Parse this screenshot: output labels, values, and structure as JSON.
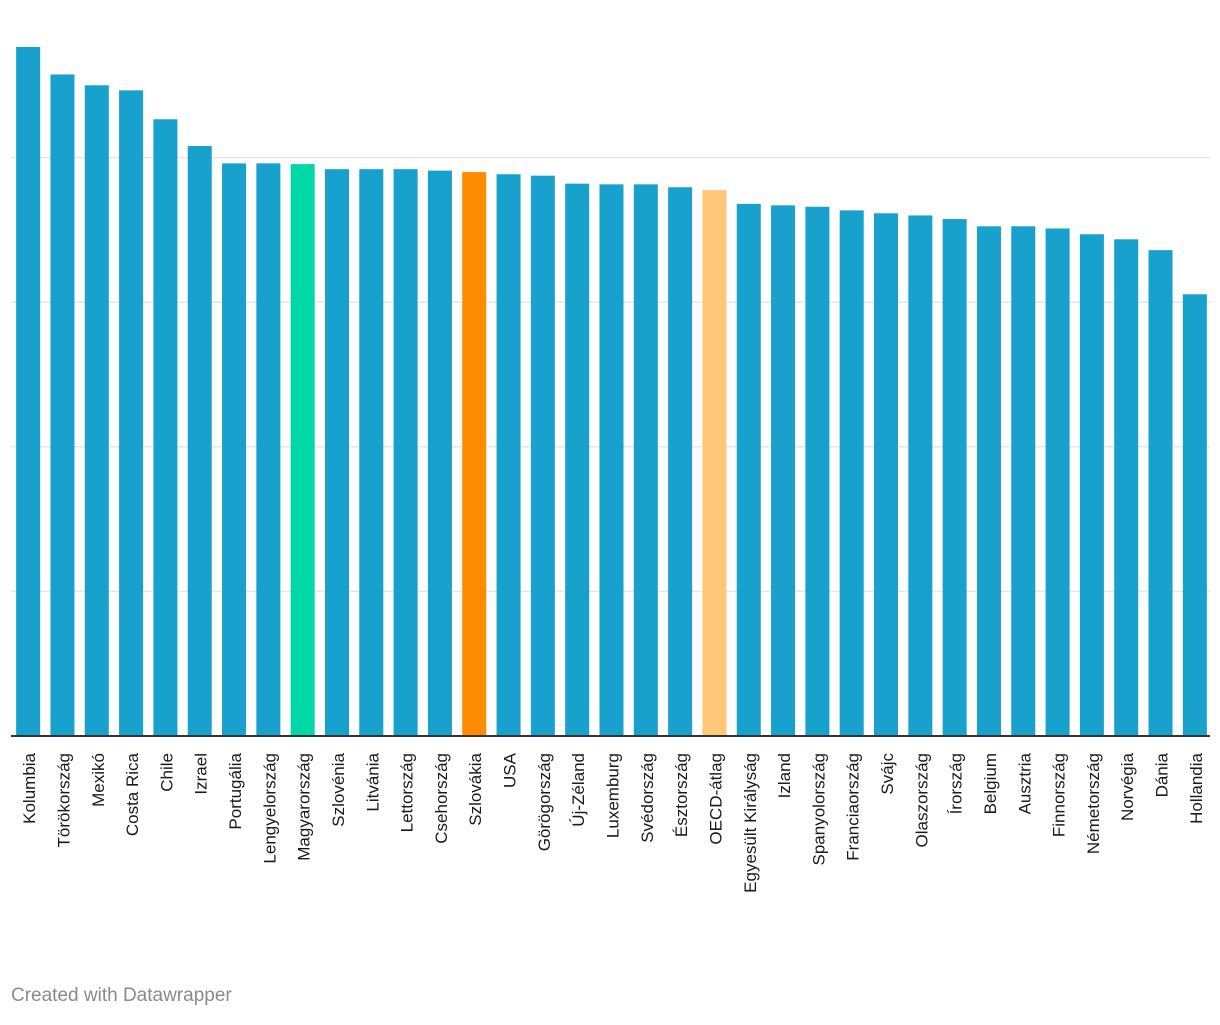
{
  "chart_data": {
    "type": "bar",
    "title": "",
    "xlabel": "",
    "ylabel": "",
    "ylim": [
      0,
      100
    ],
    "gridlines": [
      20,
      40,
      60,
      80
    ],
    "categories": [
      "Kolumbia",
      "Törökország",
      "Mexikó",
      "Costa Rica",
      "Chile",
      "Izrael",
      "Portugália",
      "Lengyelország",
      "Magyarország",
      "Szlovénia",
      "Litvánia",
      "Lettország",
      "Csehország",
      "Szlovákia",
      "USA",
      "Görögország",
      "Új-Zéland",
      "Luxemburg",
      "Svédország",
      "Észtország",
      "OECD-átlag",
      "Egyesült Királyság",
      "Izland",
      "Spanyolország",
      "Franciaország",
      "Svájc",
      "Olaszország",
      "Írország",
      "Belgium",
      "Ausztria",
      "Finnország",
      "Németország",
      "Norvégia",
      "Dánia",
      "Hollandia"
    ],
    "values": [
      95.3,
      91.5,
      90.0,
      89.3,
      85.3,
      81.6,
      79.2,
      79.2,
      79.1,
      78.4,
      78.4,
      78.4,
      78.2,
      78.0,
      77.7,
      77.5,
      76.4,
      76.3,
      76.3,
      75.9,
      75.5,
      73.6,
      73.4,
      73.2,
      72.7,
      72.3,
      72.0,
      71.5,
      70.5,
      70.5,
      70.2,
      69.4,
      68.7,
      67.2,
      61.1
    ],
    "highlight": {
      "Magyarország": "#00d8a8",
      "Szlovákia": "#ff8c00",
      "OECD-átlag": "#ffc878"
    },
    "default_color": "#18a1cd"
  },
  "footer": {
    "credit": "Created with Datawrapper"
  }
}
